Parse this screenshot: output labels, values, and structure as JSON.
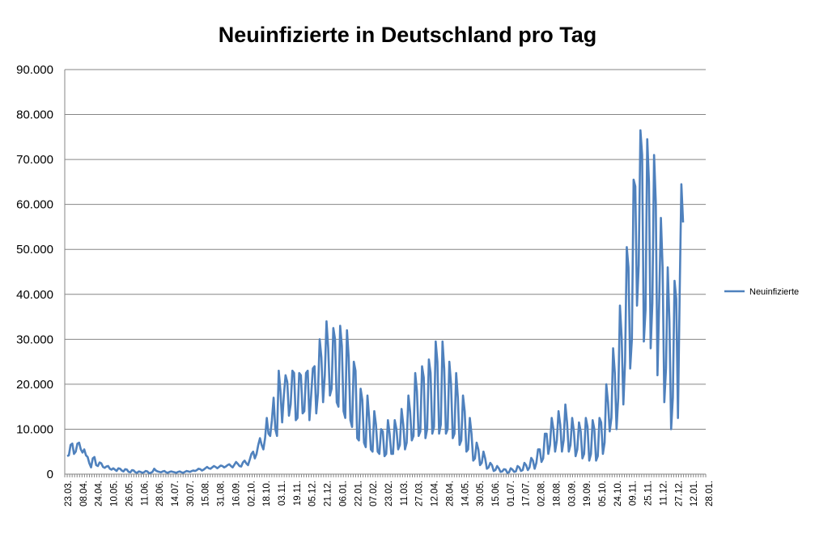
{
  "chart_data": {
    "type": "line",
    "title": "Neuinfizierte in Deutschland pro Tag",
    "xlabel": "",
    "ylabel": "",
    "ylim": [
      0,
      90000
    ],
    "y_ticks": [
      "0",
      "10.000",
      "20.000",
      "30.000",
      "40.000",
      "50.000",
      "60.000",
      "70.000",
      "80.000",
      "90.000"
    ],
    "y_tick_values": [
      0,
      10000,
      20000,
      30000,
      40000,
      50000,
      60000,
      70000,
      80000,
      90000
    ],
    "x_ticks": [
      "23.03.",
      "08.04.",
      "24.04.",
      "10.05.",
      "26.05.",
      "11.06.",
      "28.06.",
      "14.07.",
      "30.07.",
      "15.08.",
      "31.08.",
      "16.09.",
      "02.10.",
      "18.10.",
      "03.11.",
      "19.11.",
      "05.12.",
      "21.12.",
      "06.01.",
      "22.01.",
      "07.02.",
      "23.02.",
      "11.03.",
      "27.03.",
      "12.04.",
      "28.04.",
      "14.05.",
      "30.05.",
      "15.06.",
      "01.07.",
      "17.07.",
      "02.08.",
      "18.08.",
      "03.09.",
      "19.09.",
      "05.10.",
      "24.10.",
      "09.11.",
      "25.11.",
      "11.12.",
      "27.12.",
      "12.01.",
      "28.01."
    ],
    "grid": true,
    "legend_position": "right",
    "series": [
      {
        "name": "Neuinfizierte",
        "color": "#4F81BD",
        "values": [
          4000,
          4200,
          6500,
          6800,
          4500,
          5000,
          6800,
          7000,
          5500,
          4800,
          5500,
          4200,
          3800,
          2400,
          1500,
          3500,
          3800,
          2000,
          1800,
          2600,
          2400,
          1600,
          1400,
          1700,
          1800,
          1200,
          1000,
          1300,
          1000,
          700,
          1300,
          1200,
          800,
          600,
          1100,
          1000,
          500,
          400,
          900,
          800,
          400,
          300,
          600,
          500,
          300,
          400,
          700,
          600,
          200,
          300,
          500,
          1200,
          800,
          600,
          500,
          400,
          600,
          700,
          400,
          300,
          500,
          600,
          500,
          400,
          300,
          500,
          600,
          400,
          300,
          500,
          700,
          600,
          500,
          700,
          800,
          700,
          900,
          1200,
          1100,
          800,
          1000,
          1300,
          1600,
          1300,
          1200,
          1500,
          1800,
          1600,
          1300,
          1600,
          1900,
          1800,
          1500,
          1700,
          2000,
          2200,
          1800,
          1500,
          2100,
          2700,
          2300,
          1800,
          1700,
          2600,
          3000,
          2400,
          2000,
          3200,
          4500,
          5000,
          3500,
          4500,
          6500,
          8000,
          6500,
          5500,
          8000,
          12500,
          9000,
          8500,
          12000,
          17000,
          10000,
          8500,
          23000,
          18500,
          11500,
          17500,
          22000,
          20500,
          13000,
          15500,
          23000,
          22500,
          12000,
          12500,
          22500,
          22000,
          13500,
          14000,
          22500,
          23000,
          12000,
          17500,
          23500,
          24000,
          13500,
          18000,
          30000,
          26000,
          16000,
          22000,
          34000,
          28000,
          17500,
          19000,
          32500,
          30000,
          16000,
          15000,
          33000,
          28500,
          14000,
          12500,
          32000,
          26000,
          12000,
          10500,
          25000,
          23000,
          8000,
          7500,
          19000,
          16500,
          7000,
          6000,
          17500,
          12500,
          5500,
          5000,
          14000,
          11000,
          5000,
          4500,
          10000,
          9500,
          4000,
          4500,
          12000,
          9000,
          4500,
          4500,
          12000,
          10000,
          5500,
          6500,
          14500,
          11000,
          5500,
          7000,
          17500,
          14000,
          7500,
          8500,
          22500,
          18500,
          8500,
          9500,
          24000,
          21500,
          8000,
          10000,
          25500,
          22500,
          9000,
          10500,
          29500,
          25000,
          9000,
          11000,
          29500,
          23500,
          9000,
          10000,
          25000,
          20000,
          8000,
          9000,
          22500,
          17000,
          6500,
          7500,
          17500,
          14000,
          5000,
          5500,
          12500,
          9000,
          3000,
          3500,
          7000,
          5500,
          2000,
          2500,
          5000,
          3500,
          1200,
          1500,
          2500,
          2000,
          700,
          900,
          1800,
          1300,
          500,
          600,
          1100,
          1000,
          300,
          400,
          1300,
          1000,
          500,
          600,
          1800,
          1500,
          700,
          900,
          2500,
          2000,
          900,
          1500,
          3600,
          3000,
          1200,
          2500,
          5500,
          5500,
          2700,
          3500,
          9000,
          9000,
          4500,
          6500,
          12500,
          10000,
          5000,
          7500,
          14000,
          11000,
          5000,
          7500,
          15500,
          11500,
          5000,
          6500,
          12500,
          9500,
          4000,
          5500,
          11500,
          9500,
          3500,
          4500,
          12500,
          10500,
          3000,
          4500,
          12000,
          10000,
          3000,
          4000,
          12500,
          11500,
          4500,
          7000,
          20000,
          16000,
          9500,
          12500,
          28000,
          22500,
          10000,
          17000,
          37500,
          30500,
          15500,
          25000,
          50500,
          46000,
          23500,
          30000,
          65500,
          64000,
          37500,
          46500,
          76500,
          71000,
          29500,
          36500,
          74500,
          65000,
          28000,
          38000,
          71000,
          60500,
          22000,
          38500,
          57000,
          46000,
          16000,
          23500,
          46000,
          34000,
          10000,
          17000,
          43000,
          39000,
          12500,
          40000,
          64500,
          56000
        ]
      }
    ]
  }
}
